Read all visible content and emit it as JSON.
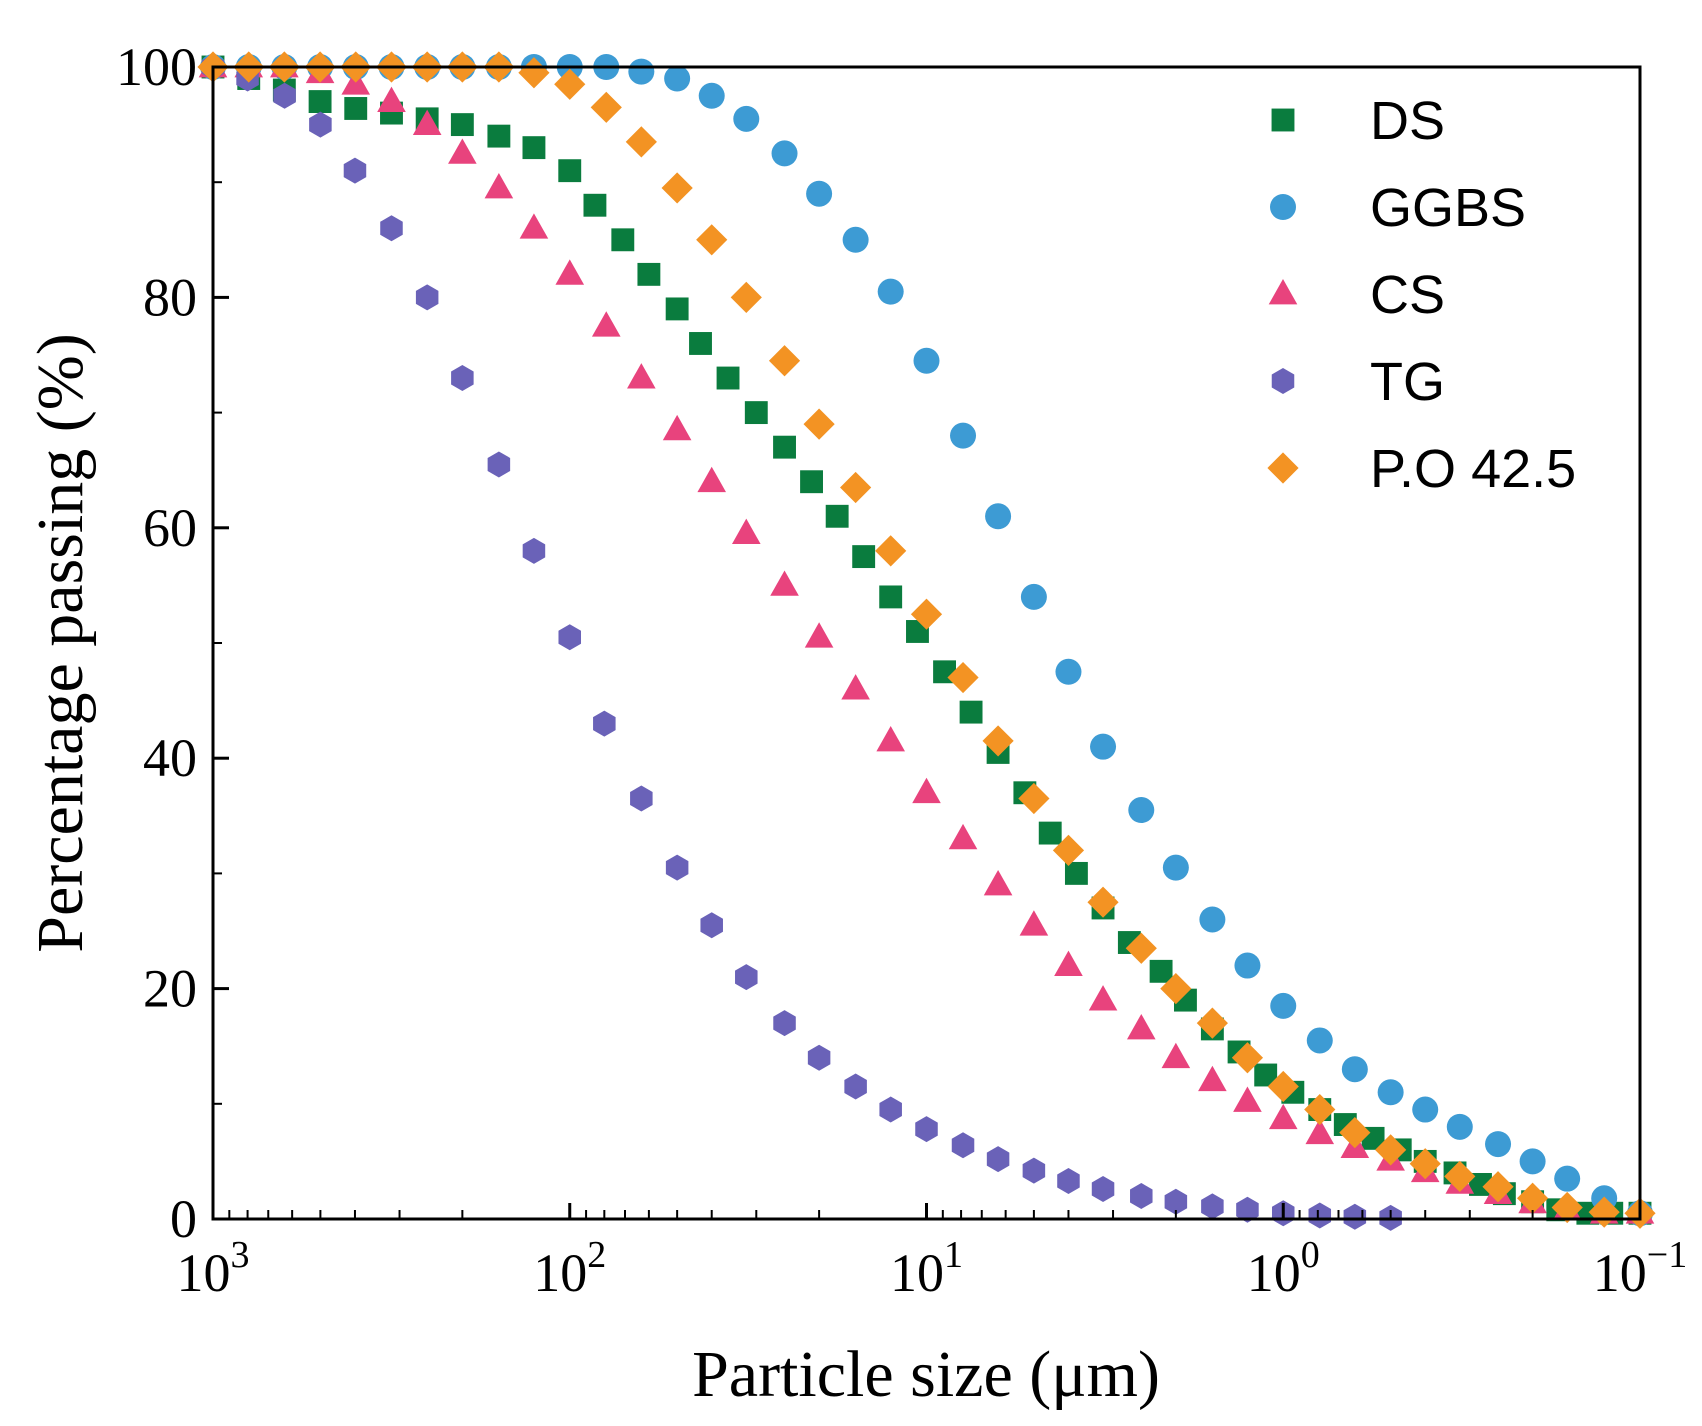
{
  "chart_data": {
    "type": "scatter",
    "xlabel": "Particle size (μm)",
    "ylabel": "Percentage passing (%)",
    "x_scale": "log",
    "x_reversed": true,
    "xlim": [
      1000,
      0.1
    ],
    "ylim": [
      0,
      100
    ],
    "grid": false,
    "legend_position": "top-right",
    "x_ticks": [
      {
        "base": "10",
        "exp": "3",
        "value": 1000
      },
      {
        "base": "10",
        "exp": "2",
        "value": 100
      },
      {
        "base": "10",
        "exp": "1",
        "value": 10
      },
      {
        "base": "10",
        "exp": "0",
        "value": 1
      },
      {
        "base": "10",
        "exp": "−1",
        "value": 0.1
      }
    ],
    "y_ticks": [
      {
        "label": "0",
        "value": 0
      },
      {
        "label": "20",
        "value": 20
      },
      {
        "label": "40",
        "value": 40
      },
      {
        "label": "60",
        "value": 60
      },
      {
        "label": "80",
        "value": 80
      },
      {
        "label": "100",
        "value": 100
      }
    ],
    "series": [
      {
        "name": "DS",
        "marker": "square",
        "color": "#0a7c3e",
        "x": [
          1000,
          794,
          631,
          501,
          398,
          316,
          251,
          200,
          158,
          126,
          100,
          85,
          71,
          60,
          50,
          43,
          36,
          30,
          25,
          21,
          17.8,
          15,
          12.6,
          10.6,
          8.9,
          7.5,
          6.3,
          5.3,
          4.5,
          3.8,
          3.2,
          2.7,
          2.2,
          1.88,
          1.58,
          1.33,
          1.12,
          0.94,
          0.79,
          0.67,
          0.56,
          0.47,
          0.4,
          0.33,
          0.28,
          0.24,
          0.2,
          0.17,
          0.14,
          0.12,
          0.1
        ],
        "y": [
          100,
          99,
          98,
          97,
          96.4,
          96,
          95.5,
          95,
          94,
          93,
          91,
          88,
          85,
          82,
          79,
          76,
          73,
          70,
          67,
          64,
          61,
          57.5,
          54,
          51,
          47.5,
          44,
          40.5,
          37,
          33.5,
          30,
          27,
          24,
          21.5,
          19,
          16.5,
          14.5,
          12.5,
          11,
          9.5,
          8.2,
          7,
          6,
          5,
          4,
          3,
          2.2,
          1.5,
          0.8,
          0.5,
          0.5,
          0.5
        ]
      },
      {
        "name": "GGBS",
        "marker": "circle",
        "color": "#3d9bd4",
        "x": [
          1000,
          794,
          631,
          501,
          398,
          316,
          251,
          200,
          158,
          126,
          100,
          79,
          63,
          50,
          40,
          32,
          25,
          20,
          15.8,
          12.6,
          10,
          7.9,
          6.3,
          5,
          4,
          3.2,
          2.5,
          2,
          1.58,
          1.26,
          1,
          0.79,
          0.63,
          0.5,
          0.4,
          0.32,
          0.25,
          0.2,
          0.16,
          0.126,
          0.1
        ],
        "y": [
          100,
          100,
          100,
          100,
          100,
          100,
          100,
          100,
          100,
          100,
          100,
          100,
          99.6,
          99,
          97.5,
          95.5,
          92.5,
          89,
          85,
          80.5,
          74.5,
          68,
          61,
          54,
          47.5,
          41,
          35.5,
          30.5,
          26,
          22,
          18.5,
          15.5,
          13,
          11,
          9.5,
          8,
          6.5,
          5,
          3.5,
          1.8,
          0.5
        ]
      },
      {
        "name": "CS",
        "marker": "triangle",
        "color": "#e8437d",
        "x": [
          1000,
          794,
          631,
          501,
          398,
          316,
          251,
          200,
          158,
          126,
          100,
          79,
          63,
          50,
          40,
          32,
          25,
          20,
          15.8,
          12.6,
          10,
          7.9,
          6.3,
          5,
          4,
          3.2,
          2.5,
          2,
          1.58,
          1.26,
          1,
          0.79,
          0.63,
          0.5,
          0.4,
          0.32,
          0.25,
          0.2,
          0.16,
          0.126,
          0.1
        ],
        "y": [
          100,
          100,
          100,
          99.5,
          98.5,
          97,
          95,
          92.5,
          89.5,
          86,
          82,
          77.5,
          73,
          68.5,
          64,
          59.5,
          55,
          50.5,
          46,
          41.5,
          37,
          33,
          29,
          25.5,
          22,
          19,
          16.5,
          14,
          12,
          10.2,
          8.7,
          7.4,
          6.2,
          5.1,
          4.1,
          3.1,
          2.2,
          1.4,
          0.8,
          0.5,
          0.5
        ]
      },
      {
        "name": "TG",
        "marker": "hexagon",
        "color": "#6a62b8",
        "x": [
          1000,
          800,
          630,
          500,
          400,
          316,
          251,
          200,
          158,
          126,
          100,
          80,
          63,
          50,
          40,
          32,
          25,
          20,
          15.8,
          12.6,
          10,
          7.9,
          6.3,
          5,
          4,
          3.2,
          2.5,
          2,
          1.58,
          1.26,
          1,
          0.79,
          0.63,
          0.5
        ],
        "y": [
          100,
          99,
          97.5,
          95,
          91,
          86,
          80,
          73,
          65.5,
          58,
          50.5,
          43,
          36.5,
          30.5,
          25.5,
          21,
          17,
          14,
          11.5,
          9.5,
          7.8,
          6.4,
          5.2,
          4.2,
          3.3,
          2.6,
          2,
          1.5,
          1.1,
          0.8,
          0.5,
          0.3,
          0.2,
          0.1
        ]
      },
      {
        "name": "P.O 42.5",
        "marker": "diamond",
        "color": "#f39323",
        "x": [
          1000,
          794,
          631,
          501,
          398,
          316,
          251,
          200,
          158,
          126,
          100,
          79,
          63,
          50,
          40,
          32,
          25,
          20,
          15.8,
          12.6,
          10,
          7.9,
          6.3,
          5,
          4,
          3.2,
          2.5,
          2,
          1.58,
          1.26,
          1,
          0.79,
          0.63,
          0.5,
          0.4,
          0.32,
          0.25,
          0.2,
          0.16,
          0.126,
          0.1
        ],
        "y": [
          100,
          100,
          100,
          100,
          100,
          100,
          100,
          100,
          100,
          99.5,
          98.5,
          96.5,
          93.5,
          89.5,
          85,
          80,
          74.5,
          69,
          63.5,
          58,
          52.5,
          47,
          41.5,
          36.5,
          32,
          27.5,
          23.5,
          20,
          17,
          14,
          11.5,
          9.5,
          7.5,
          6,
          4.8,
          3.7,
          2.8,
          1.8,
          1,
          0.6,
          0.5
        ]
      }
    ]
  }
}
